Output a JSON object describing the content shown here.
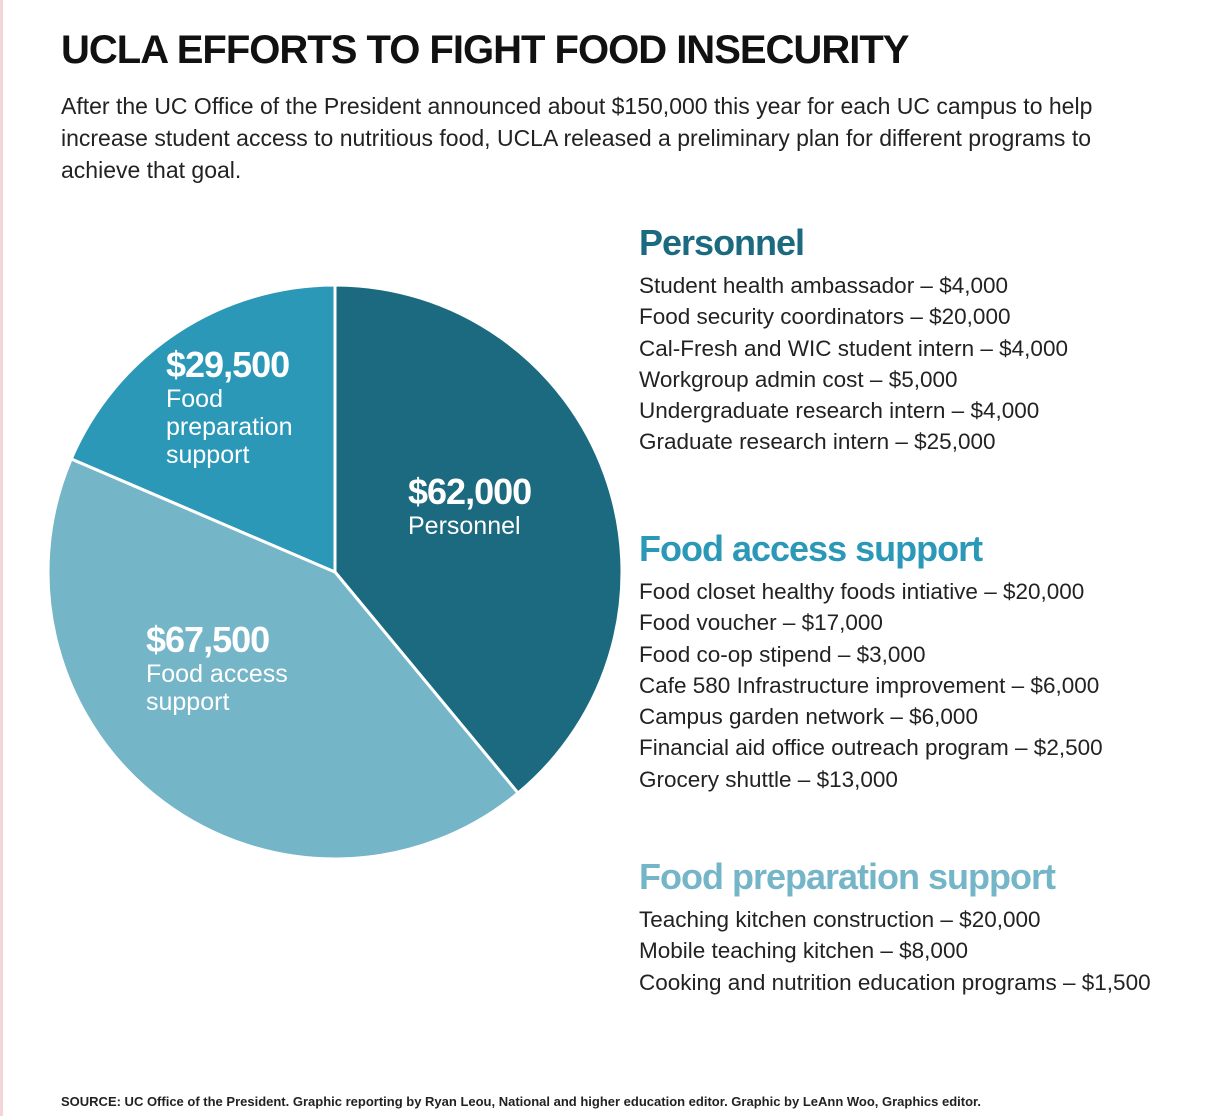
{
  "chart_data": {
    "type": "pie",
    "title": "UCLA EFFORTS TO FIGHT FOOD INSECURITY",
    "subtitle": "After the UC Office of the President announced about $150,000 this year for each UC campus to help increase student access to nutritious food, UCLA released a preliminary plan for different programs to achieve that goal.",
    "categories": [
      "Personnel",
      "Food access support",
      "Food preparation support"
    ],
    "values": [
      62000,
      67500,
      29500
    ],
    "value_labels": [
      "$62,000",
      "$67,500",
      "$29,500"
    ],
    "colors": [
      "#1b6a80",
      "#74b5c8",
      "#2b98b8"
    ]
  },
  "breakdown": [
    {
      "title": "Personnel",
      "items": [
        "Student health ambassador – $4,000",
        "Food security coordinators – $20,000",
        "Cal-Fresh and WIC student intern – $4,000",
        "Workgroup admin cost – $5,000",
        "Undergraduate research intern – $4,000",
        "Graduate research intern – $25,000"
      ]
    },
    {
      "title": "Food access support",
      "items": [
        "Food closet healthy foods intiative – $20,000",
        "Food voucher – $17,000",
        "Food co-op stipend – $3,000",
        "Cafe 580 Infrastructure improvement – $6,000",
        "Campus garden network – $6,000",
        "Financial aid office outreach program – $2,500",
        "Grocery shuttle – $13,000"
      ]
    },
    {
      "title": "Food preparation support",
      "items": [
        "Teaching kitchen construction – $20,000",
        "Mobile teaching kitchen – $8,000",
        "Cooking and nutrition education programs – $1,500"
      ]
    }
  ],
  "source": "SOURCE: UC Office of the President. Graphic reporting by Ryan Leou, National and higher education editor. Graphic by LeAnn Woo, Graphics editor."
}
